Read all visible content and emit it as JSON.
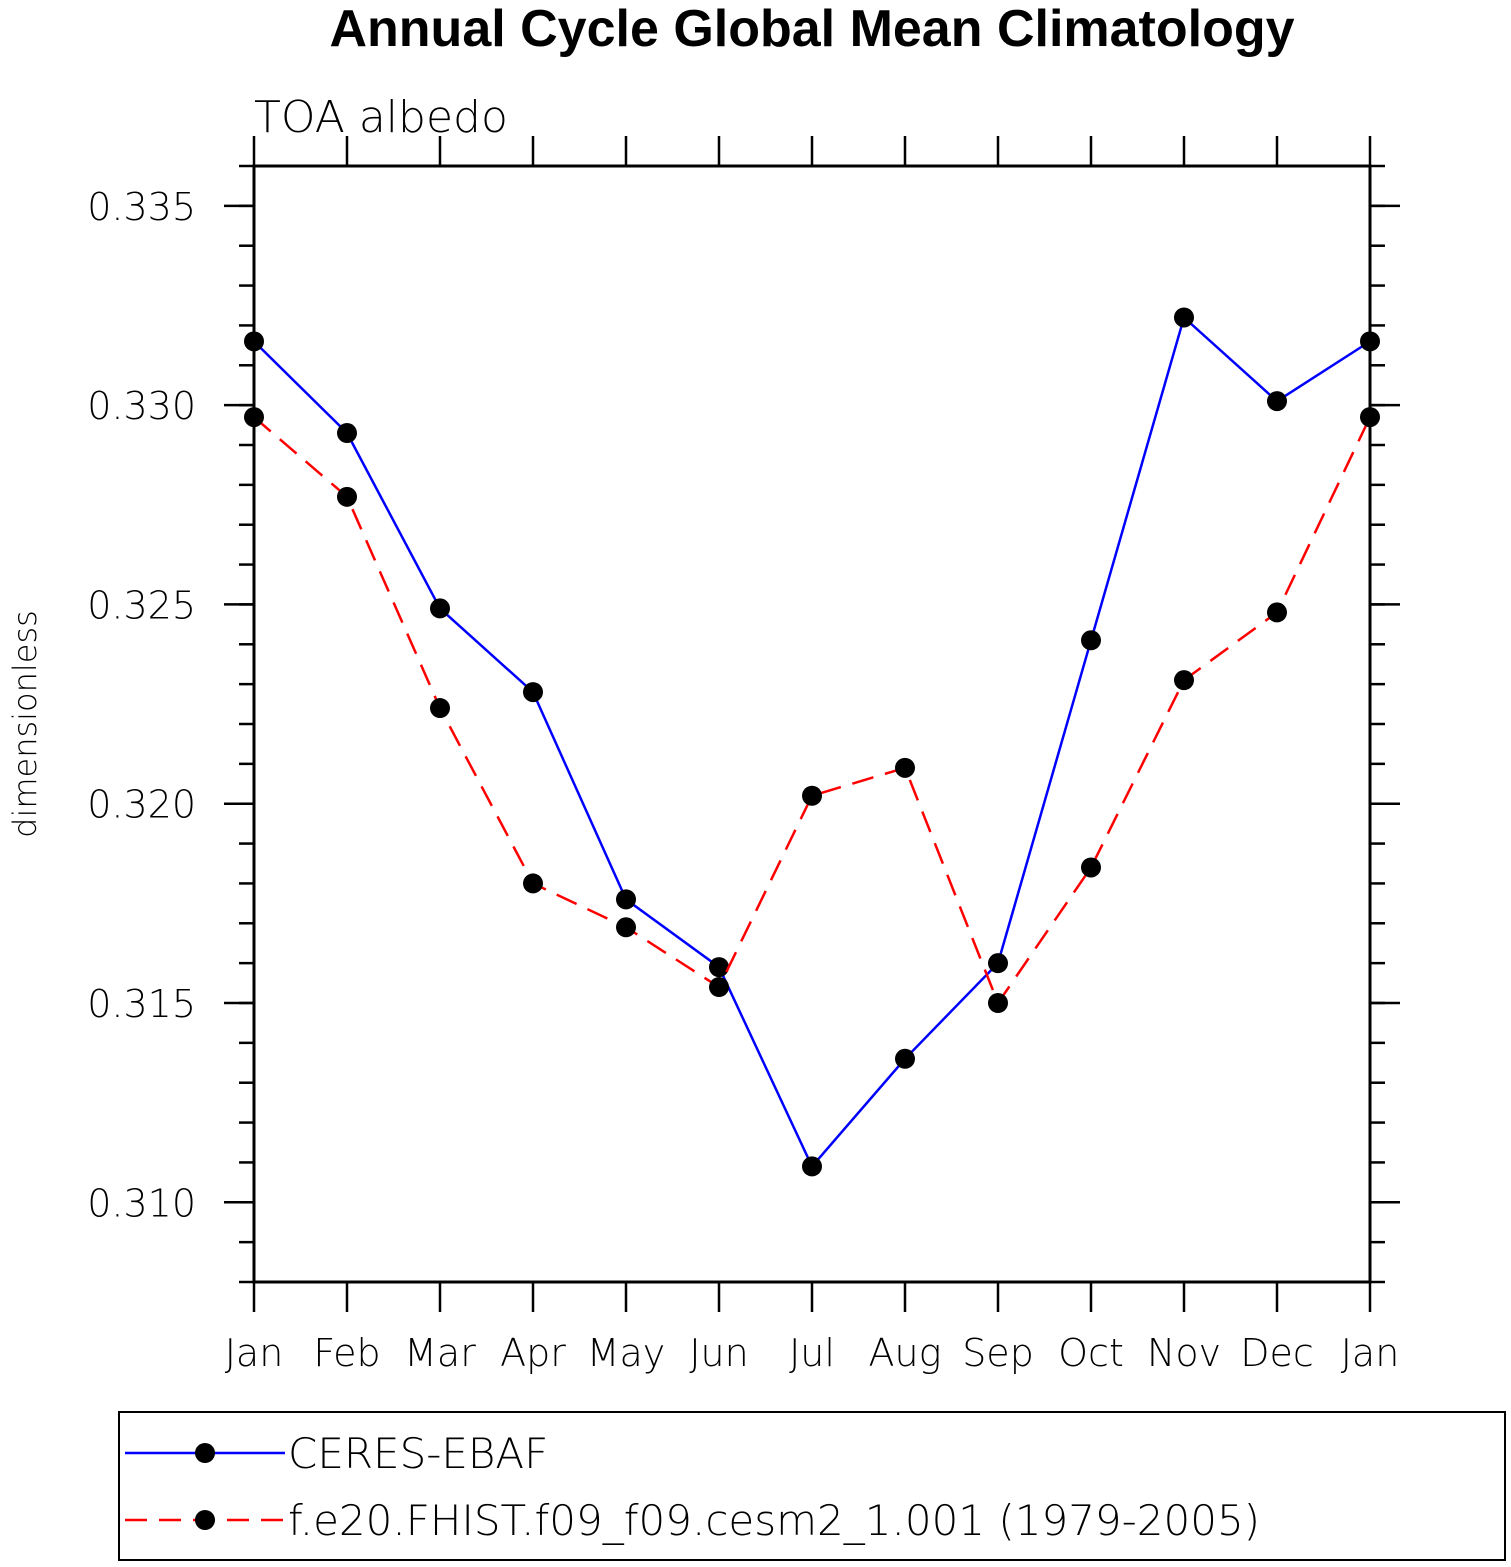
{
  "chart_data": {
    "type": "line",
    "title": "Annual Cycle Global Mean Climatology",
    "subtitle": "TOA albedo",
    "xlabel": "",
    "ylabel": "dimensionless",
    "categories": [
      "Jan",
      "Feb",
      "Mar",
      "Apr",
      "May",
      "Jun",
      "Jul",
      "Aug",
      "Sep",
      "Oct",
      "Nov",
      "Dec",
      "Jan"
    ],
    "ylim": [
      0.308,
      0.336
    ],
    "yticks": [
      0.31,
      0.315,
      0.32,
      0.325,
      0.33,
      0.335
    ],
    "ytick_labels": [
      "0.310",
      "0.315",
      "0.320",
      "0.325",
      "0.330",
      "0.335"
    ],
    "grid": false,
    "legend_position": "bottom",
    "series": [
      {
        "name": "CERES-EBAF",
        "color": "#0000ff",
        "dash": "solid",
        "values": [
          0.3316,
          0.3293,
          0.3249,
          0.3228,
          0.3176,
          0.3159,
          0.3109,
          0.3136,
          0.316,
          0.3241,
          0.3322,
          0.3301,
          0.3316
        ]
      },
      {
        "name": "f.e20.FHIST.f09_f09.cesm2_1.001 (1979-2005)",
        "color": "#ff0000",
        "dash": "dashed",
        "values": [
          0.3297,
          0.3277,
          0.3224,
          0.318,
          0.3169,
          0.3154,
          0.3202,
          0.3209,
          0.315,
          0.3184,
          0.3231,
          0.3248,
          0.3297
        ]
      }
    ]
  }
}
